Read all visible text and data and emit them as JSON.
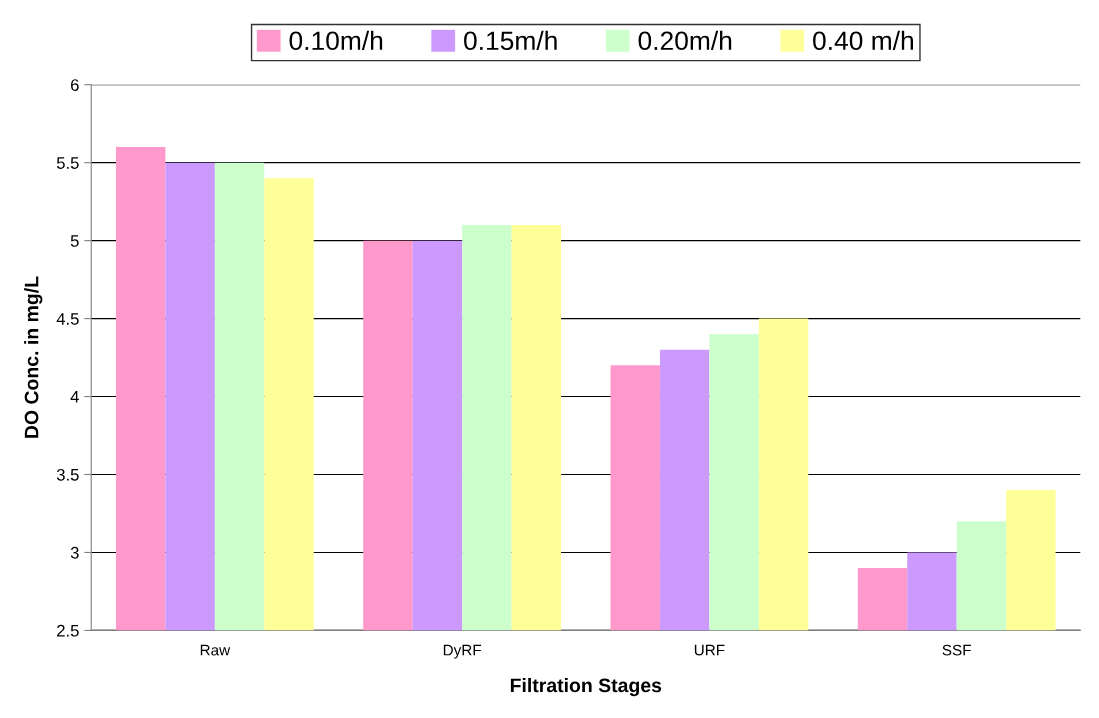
{
  "chart_data": {
    "type": "bar",
    "xlabel": "Filtration Stages",
    "ylabel": "DO Conc. in mg/L",
    "categories": [
      "Raw",
      "DyRF",
      "URF",
      "SSF"
    ],
    "series": [
      {
        "name": "0.10m/h",
        "color": "#ff99cc",
        "values": [
          5.6,
          5.0,
          4.2,
          2.9
        ]
      },
      {
        "name": "0.15m/h",
        "color": "#cc99ff",
        "values": [
          5.5,
          5.0,
          4.3,
          3.0
        ]
      },
      {
        "name": "0.20m/h",
        "color": "#ccffcc",
        "values": [
          5.5,
          5.1,
          4.4,
          3.2
        ]
      },
      {
        "name": "0.40 m/h",
        "color": "#ffff99",
        "values": [
          5.4,
          5.1,
          4.5,
          3.4
        ]
      }
    ],
    "ylim": [
      2.5,
      6
    ],
    "yticks": [
      2.5,
      3,
      3.5,
      4,
      4.5,
      5,
      5.5,
      6
    ],
    "grid": "y",
    "legend": "top"
  }
}
